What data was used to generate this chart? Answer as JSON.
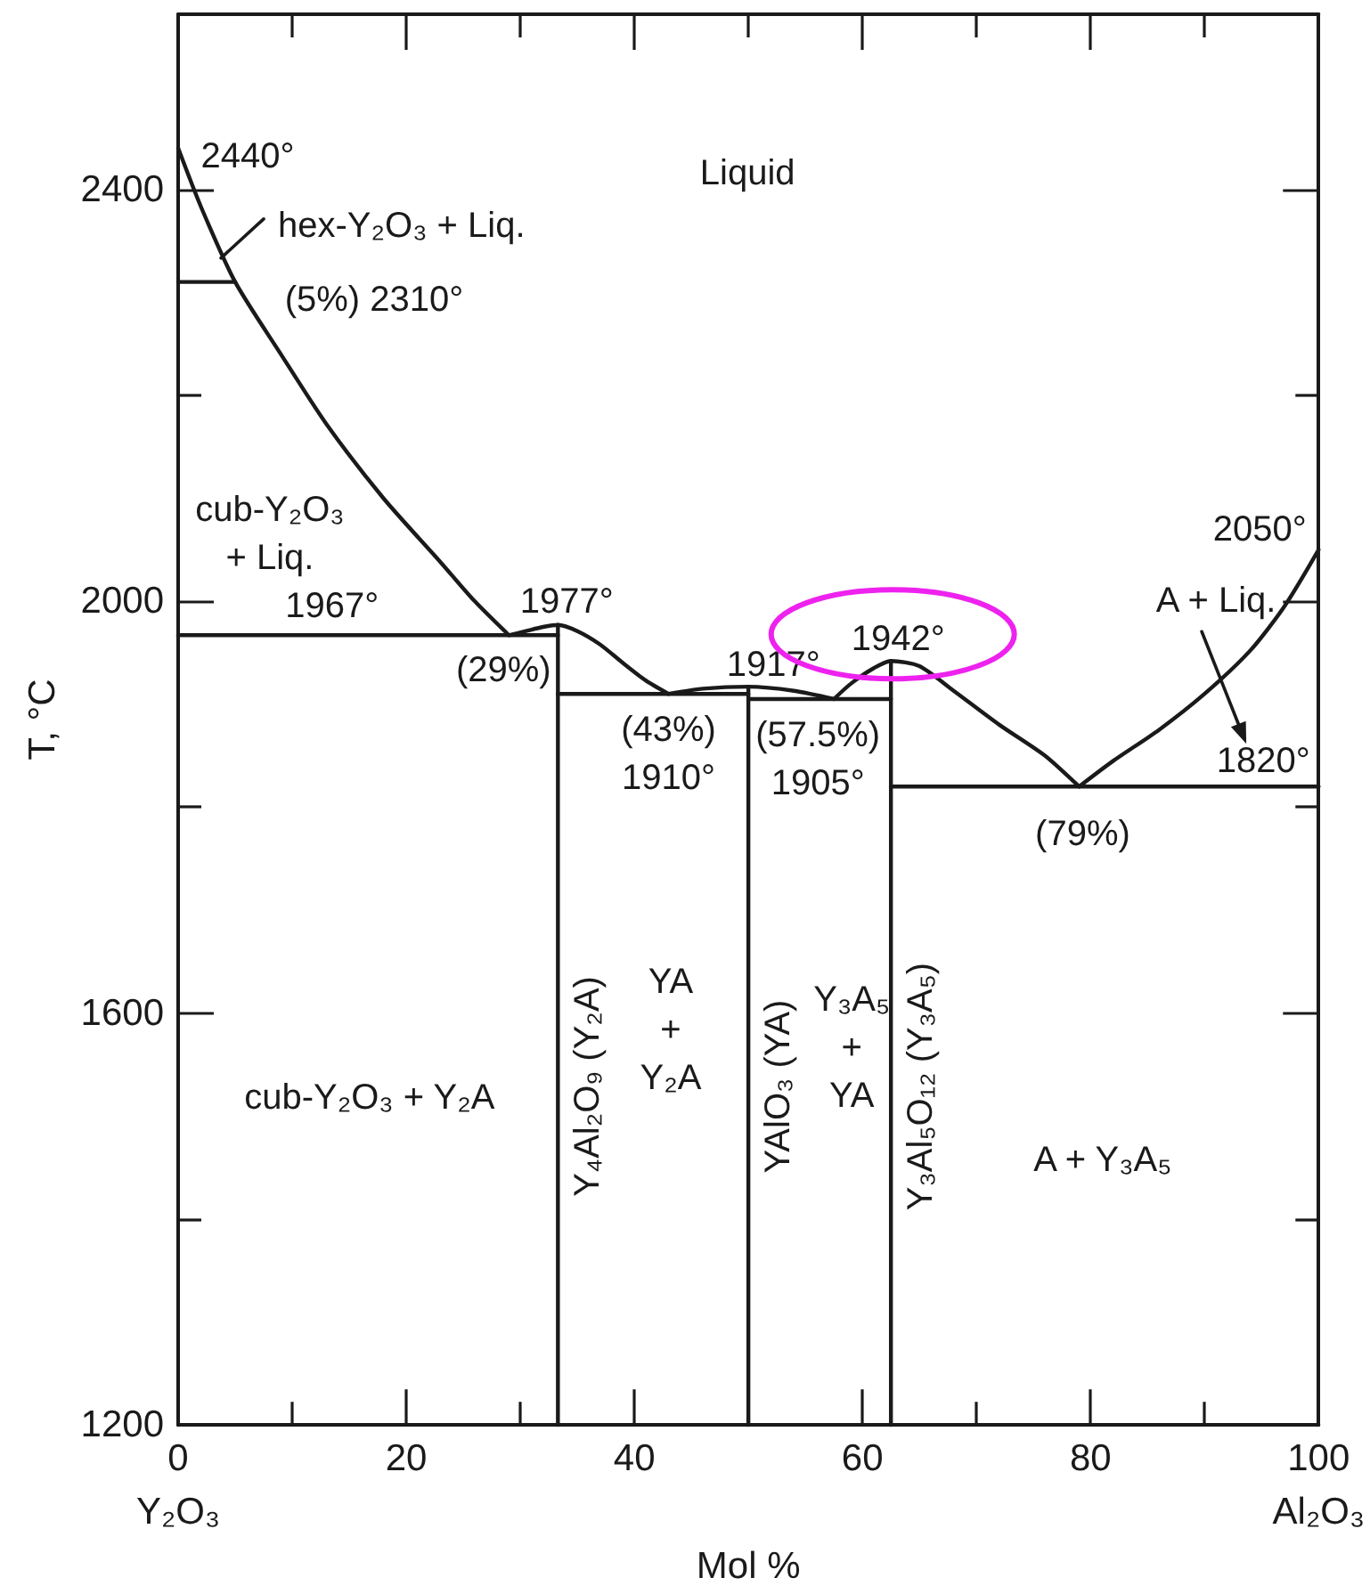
{
  "chart_data": {
    "type": "line",
    "xlabel": "Mol %",
    "ylabel": "T, °C",
    "xlim": [
      0,
      100
    ],
    "ylim": [
      1200,
      2570
    ],
    "xticks": [
      {
        "value": 0,
        "label": "0\nY₂O₃"
      },
      {
        "value": 10,
        "label": null
      },
      20,
      {
        "value": 30,
        "label": null
      },
      40,
      {
        "value": 50,
        "label": null
      },
      60,
      {
        "value": 70,
        "label": null
      },
      80,
      {
        "value": 90,
        "label": null
      },
      {
        "value": 100,
        "label": "100\nAl₂O₃"
      }
    ],
    "yticks": [
      1200,
      {
        "value": 1400,
        "label": null
      },
      1600,
      {
        "value": 1800,
        "label": null
      },
      2000,
      {
        "value": 2200,
        "label": null
      },
      2400
    ],
    "marker": "none",
    "line_style": "solid",
    "series": [
      {
        "color": "#1a1a1a",
        "x": [
          0,
          2,
          5,
          9,
          13,
          18,
          23,
          26,
          29
        ],
        "values": [
          2440,
          2383,
          2310,
          2240,
          2172,
          2100,
          2038,
          2000,
          1967
        ]
      },
      {
        "color": "#1a1a1a",
        "x": [
          0,
          5
        ],
        "values": [
          2310,
          2310
        ]
      },
      {
        "color": "#1a1a1a",
        "x": [
          0,
          33.3
        ],
        "values": [
          1967,
          1967
        ]
      },
      {
        "color": "#1a1a1a",
        "x": [
          29,
          30.5,
          32,
          33.3,
          35,
          37,
          39,
          41,
          43
        ],
        "values": [
          1967,
          1971,
          1975,
          1977,
          1971,
          1958,
          1940,
          1923,
          1910
        ]
      },
      {
        "name": "Y₄Al₂O₉ (Y₂A)",
        "color": "#1a1a1a",
        "x": [
          33.3,
          33.3
        ],
        "values": [
          1200,
          1977
        ]
      },
      {
        "color": "#1a1a1a",
        "x": [
          33.3,
          50
        ],
        "values": [
          1910,
          1910
        ]
      },
      {
        "color": "#1a1a1a",
        "x": [
          43,
          46,
          50,
          54,
          57.5
        ],
        "values": [
          1910,
          1915,
          1917,
          1913,
          1905
        ]
      },
      {
        "name": "YAlO₃ (YA)",
        "color": "#1a1a1a",
        "x": [
          50,
          50
        ],
        "values": [
          1200,
          1917
        ]
      },
      {
        "color": "#1a1a1a",
        "x": [
          50,
          62.5
        ],
        "values": [
          1905,
          1905
        ]
      },
      {
        "color": "#1a1a1a",
        "x": [
          57.5,
          59,
          61,
          62.5,
          65,
          68,
          72,
          76,
          79
        ],
        "values": [
          1905,
          1920,
          1935,
          1942,
          1937,
          1913,
          1880,
          1850,
          1820
        ]
      },
      {
        "name": "Y₃Al₅O₁₂ (Y₃A₅)",
        "color": "#1a1a1a",
        "x": [
          62.5,
          62.5
        ],
        "values": [
          1200,
          1942
        ]
      },
      {
        "color": "#1a1a1a",
        "x": [
          62.5,
          100
        ],
        "values": [
          1820,
          1820
        ]
      },
      {
        "color": "#1a1a1a",
        "x": [
          79,
          82,
          86,
          90,
          94,
          97,
          100
        ],
        "values": [
          1820,
          1845,
          1875,
          1910,
          1952,
          1995,
          2050
        ]
      }
    ],
    "annotations": [
      "Liquid",
      {
        "text": "2440°",
        "x": 0,
        "y": 2440
      },
      "hex-Y₂O₃ + Liq.",
      {
        "text": "(5%) 2310°",
        "x": 5,
        "y": 2310
      },
      "cub-Y₂O₃\n+ Liq.",
      {
        "text": "1967°",
        "x": 13.5,
        "y": 1967
      },
      {
        "text": "(29%)",
        "x": 29,
        "y": 1967
      },
      {
        "text": "1977°",
        "x": 33.3,
        "y": 1977
      },
      {
        "text": "1917°",
        "x": 50,
        "y": 1917
      },
      {
        "text": "1942°",
        "x": 62.5,
        "y": 1942
      },
      {
        "text": "(43%)\n1910°",
        "x": 43,
        "y": 1910
      },
      {
        "text": "(57.5%)\n1905°",
        "x": 57.5,
        "y": 1905
      },
      {
        "text": "2050°",
        "x": 100,
        "y": 2050
      },
      "A + Liq.",
      {
        "text": "1820°",
        "x": 95,
        "y": 1820
      },
      {
        "text": "(79%)",
        "x": 79,
        "y": 1820
      },
      "cub-Y₂O₃ + Y₂A",
      "YA\n+\nY₂A",
      "Y₃A₅\n+\nYA",
      "A + Y₃A₅"
    ]
  }
}
